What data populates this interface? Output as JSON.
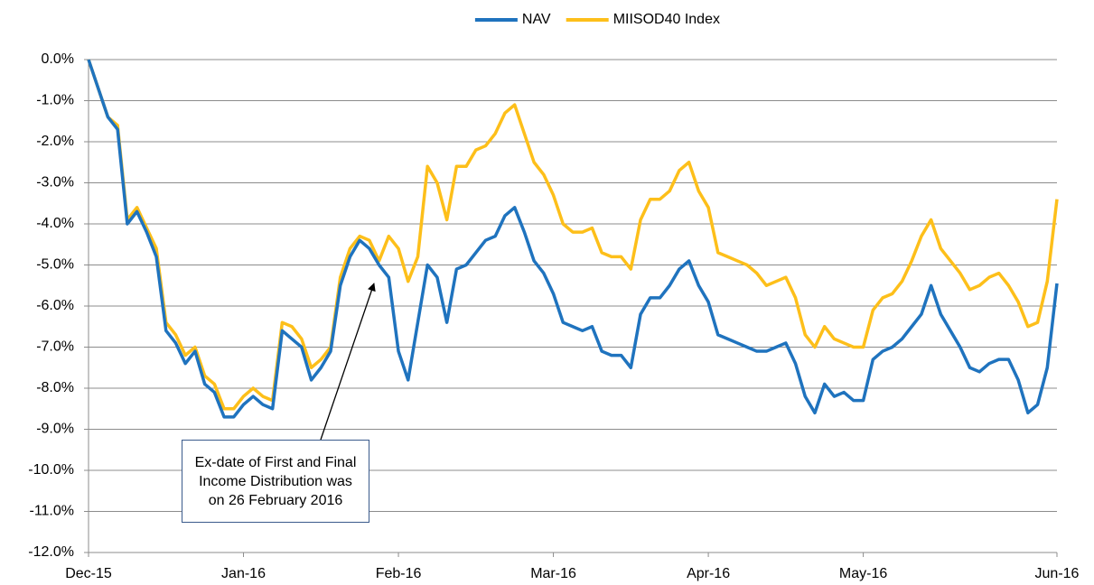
{
  "chart_data": {
    "type": "line",
    "categories": [
      "Dec-15",
      null,
      null,
      null,
      null,
      null,
      null,
      null,
      null,
      null,
      null,
      null,
      null,
      null,
      null,
      null,
      "Jan-16",
      null,
      null,
      null,
      null,
      null,
      null,
      null,
      null,
      null,
      null,
      null,
      null,
      null,
      null,
      null,
      "Feb-16",
      null,
      null,
      null,
      null,
      null,
      null,
      null,
      null,
      null,
      null,
      null,
      null,
      null,
      null,
      null,
      "Mar-16",
      null,
      null,
      null,
      null,
      null,
      null,
      null,
      null,
      null,
      null,
      null,
      null,
      null,
      null,
      null,
      "Apr-16",
      null,
      null,
      null,
      null,
      null,
      null,
      null,
      null,
      null,
      null,
      null,
      null,
      null,
      null,
      null,
      "May-16",
      null,
      null,
      null,
      null,
      null,
      null,
      null,
      null,
      null,
      null,
      null,
      null,
      null,
      null,
      null,
      null,
      null,
      null,
      null,
      "Jun-16"
    ],
    "series": [
      {
        "name": "NAV",
        "color": "#1f73be",
        "values": [
          0,
          -0.7,
          -1.4,
          -1.7,
          -4.0,
          -3.7,
          -4.2,
          -4.8,
          -6.6,
          -6.9,
          -7.4,
          -7.1,
          -7.9,
          -8.1,
          -8.7,
          -8.7,
          -8.4,
          -8.2,
          -8.4,
          -8.5,
          -6.6,
          -6.8,
          -7.0,
          -7.8,
          -7.5,
          -7.1,
          -5.5,
          -4.8,
          -4.4,
          -4.6,
          -5.0,
          -5.3,
          -7.1,
          -7.8,
          -6.4,
          -5.0,
          -5.3,
          -6.4,
          -5.1,
          -5.0,
          -4.7,
          -4.4,
          -4.3,
          -3.8,
          -3.6,
          -4.2,
          -4.9,
          -5.2,
          -5.7,
          -6.4,
          -6.5,
          -6.6,
          -6.5,
          -7.1,
          -7.2,
          -7.2,
          -7.5,
          -6.2,
          -5.8,
          -5.8,
          -5.5,
          -5.1,
          -4.9,
          -5.5,
          -5.9,
          -6.7,
          -6.8,
          -6.9,
          -7.0,
          -7.1,
          -7.1,
          -7.0,
          -6.9,
          -7.4,
          -8.2,
          -8.6,
          -7.9,
          -8.2,
          -8.1,
          -8.3,
          -8.3,
          -7.3,
          -7.1,
          -7.0,
          -6.8,
          -6.5,
          -6.2,
          -5.5,
          -6.2,
          -6.6,
          -7.0,
          -7.5,
          -7.6,
          -7.4,
          -7.3,
          -7.3,
          -7.8,
          -8.6,
          -8.4,
          -7.5,
          -5.45
        ]
      },
      {
        "name": "MIISOD40 Index",
        "color": "#fdbf1a",
        "values": [
          0,
          -0.7,
          -1.4,
          -1.6,
          -3.9,
          -3.6,
          -4.1,
          -4.6,
          -6.4,
          -6.7,
          -7.2,
          -7.0,
          -7.7,
          -7.9,
          -8.5,
          -8.5,
          -8.2,
          -8.0,
          -8.2,
          -8.3,
          -6.4,
          -6.5,
          -6.8,
          -7.5,
          -7.3,
          -7.0,
          -5.3,
          -4.6,
          -4.3,
          -4.4,
          -4.9,
          -4.3,
          -4.6,
          -5.4,
          -4.8,
          -2.6,
          -3.0,
          -3.9,
          -2.6,
          -2.6,
          -2.2,
          -2.1,
          -1.8,
          -1.3,
          -1.1,
          -1.8,
          -2.5,
          -2.8,
          -3.3,
          -4.0,
          -4.2,
          -4.2,
          -4.1,
          -4.7,
          -4.8,
          -4.8,
          -5.1,
          -3.9,
          -3.4,
          -3.4,
          -3.2,
          -2.7,
          -2.5,
          -3.2,
          -3.6,
          -4.7,
          -4.8,
          -4.9,
          -5.0,
          -5.2,
          -5.5,
          -5.4,
          -5.3,
          -5.8,
          -6.7,
          -7.0,
          -6.5,
          -6.8,
          -6.9,
          -7.0,
          -7.0,
          -6.1,
          -5.8,
          -5.7,
          -5.4,
          -4.9,
          -4.3,
          -3.9,
          -4.6,
          -4.9,
          -5.2,
          -5.6,
          -5.5,
          -5.3,
          -5.2,
          -5.5,
          -5.9,
          -6.5,
          -6.4,
          -5.4,
          -3.4
        ]
      }
    ],
    "ylim": [
      -12,
      0
    ],
    "yticks": [
      {
        "value": 0,
        "label": "0.0%"
      },
      {
        "value": -1,
        "label": "-1.0%"
      },
      {
        "value": -2,
        "label": "-2.0%"
      },
      {
        "value": -3,
        "label": "-3.0%"
      },
      {
        "value": -4,
        "label": "-4.0%"
      },
      {
        "value": -5,
        "label": "-5.0%"
      },
      {
        "value": -6,
        "label": "-6.0%"
      },
      {
        "value": -7,
        "label": "-7.0%"
      },
      {
        "value": -8,
        "label": "-8.0%"
      },
      {
        "value": -9,
        "label": "-9.0%"
      },
      {
        "value": -10,
        "label": "-10.0%"
      },
      {
        "value": -11,
        "label": "-11.0%"
      },
      {
        "value": -12,
        "label": "-12.0%"
      }
    ],
    "grid": true,
    "legend": "top",
    "annotation": "Ex-date of First and Final Income Distribution was on 26 February 2016"
  }
}
